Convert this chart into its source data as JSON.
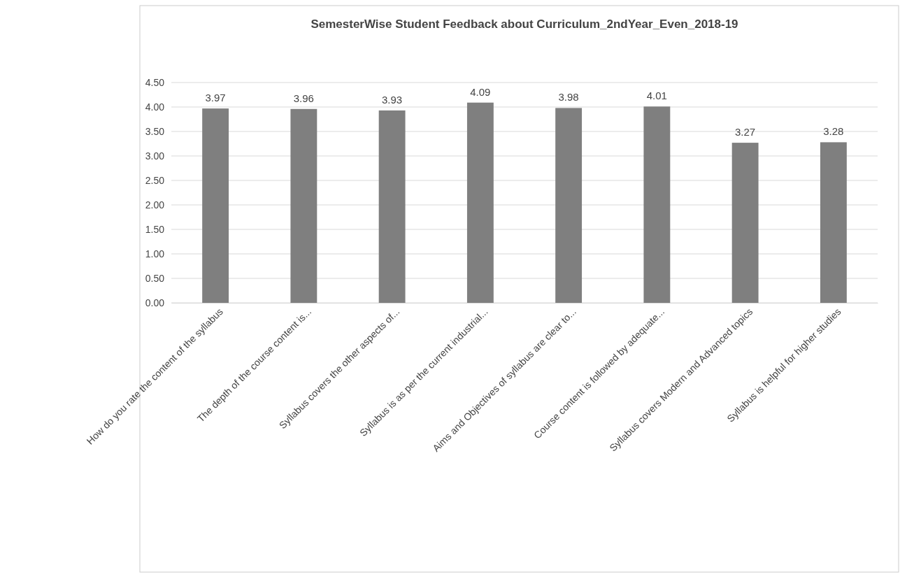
{
  "chart_data": {
    "type": "bar",
    "title": "SemesterWise Student Feedback about Curriculum_2ndYear_Even_2018-19",
    "categories": [
      "How do you rate the content of the syllabus",
      "The depth of the course content is...",
      "Syllabus covers the other aspects of...",
      "Syllabus is as per the current industrial...",
      "Aims and Objectives of syllabus are clear to...",
      "Course content is followed by adequate...",
      "Syllabus covers Modern and Advanced topics",
      "Syllabus is helpful for higher studies"
    ],
    "values": [
      3.97,
      3.96,
      3.93,
      4.09,
      3.98,
      4.01,
      3.27,
      3.28
    ],
    "color": "#7f7f7f",
    "ylim": [
      0,
      4.5
    ],
    "yticks": [
      {
        "value": 0,
        "label": "0.00"
      },
      {
        "value": 0.5,
        "label": "0.50"
      },
      {
        "value": 1,
        "label": "1.00"
      },
      {
        "value": 1.5,
        "label": "1.50"
      },
      {
        "value": 2,
        "label": "2.00"
      },
      {
        "value": 2.5,
        "label": "2.50"
      },
      {
        "value": 3,
        "label": "3.00"
      },
      {
        "value": 3.5,
        "label": "3.50"
      },
      {
        "value": 4,
        "label": "4.00"
      },
      {
        "value": 4.5,
        "label": "4.50"
      }
    ],
    "grid": "y",
    "data_labels": true
  }
}
